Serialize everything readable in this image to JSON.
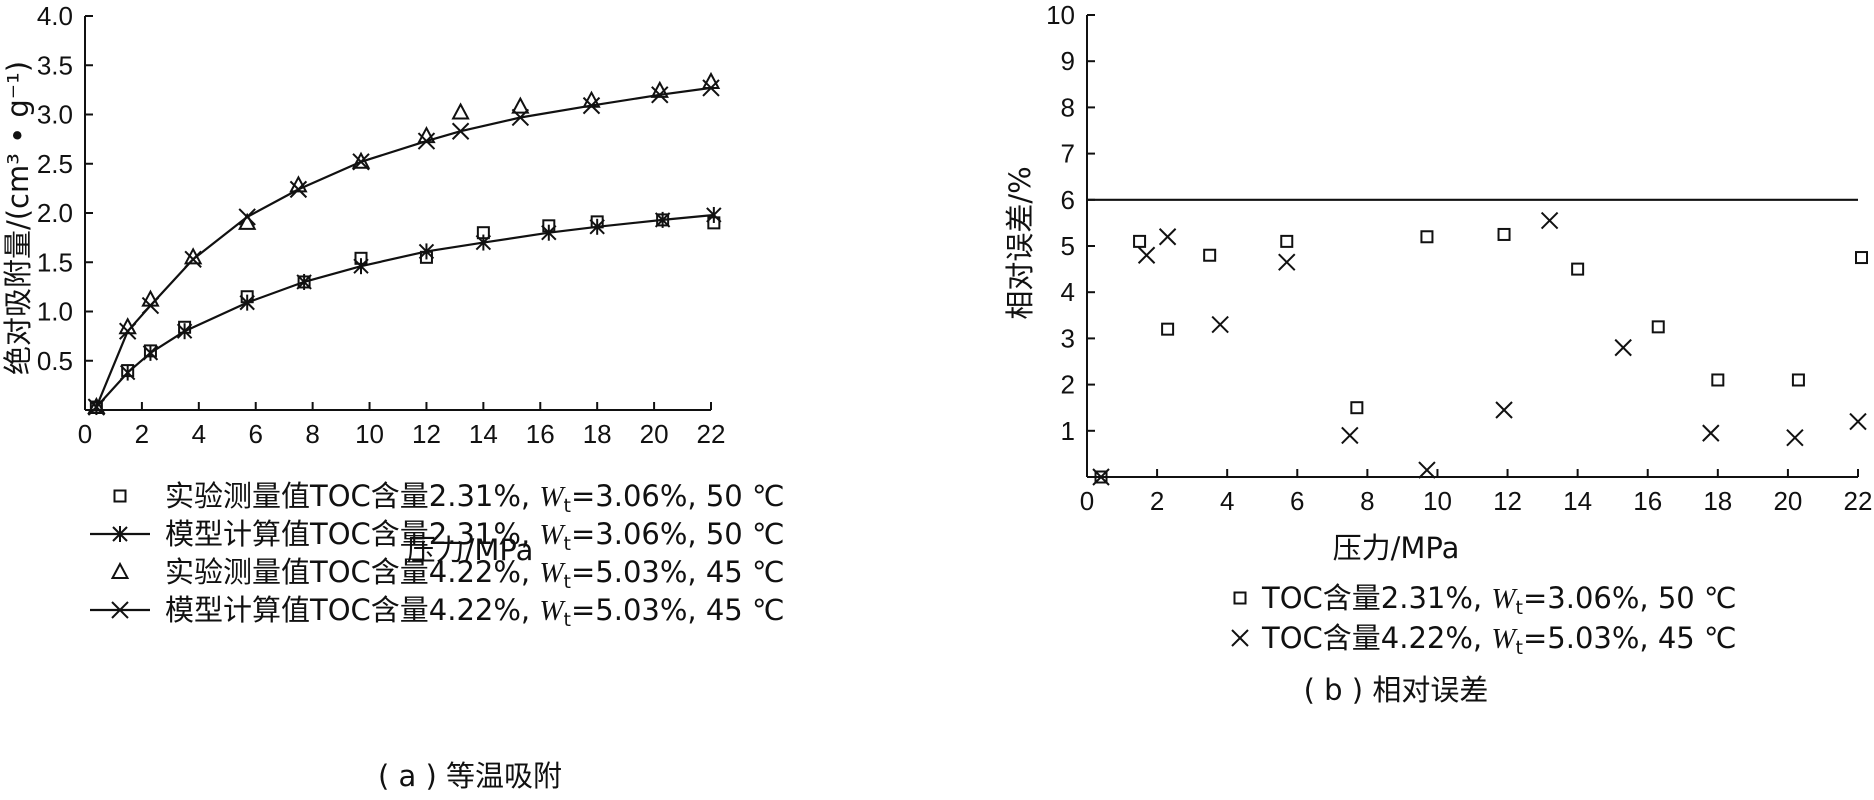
{
  "chart_data": [
    {
      "id": "a",
      "type": "scatter+line",
      "caption": "( a ) 等温吸附",
      "xlabel": "压力/MPa",
      "ylabel": "绝对吸附量/(cm³ • g⁻¹)",
      "xlim": [
        0,
        22
      ],
      "ylim": [
        0,
        4.0
      ],
      "xticks": [
        "0",
        "2",
        "4",
        "6",
        "8",
        "10",
        "12",
        "14",
        "16",
        "18",
        "20",
        "22"
      ],
      "yticks": [
        "0.5",
        "1.0",
        "1.5",
        "2.0",
        "2.5",
        "3.0",
        "3.5",
        "4.0"
      ],
      "series": [
        {
          "name": "实验测量值TOC含量2.31%, Wt=3.06%, 50 ℃",
          "legend_prefix": "实验测量值TOC含量2.31%, ",
          "legend_var": "W",
          "legend_sub": "t",
          "legend_suffix": "=3.06%, 50 ℃",
          "marker": "square",
          "line": false,
          "x": [
            0.4,
            1.5,
            2.3,
            3.5,
            5.7,
            7.7,
            9.7,
            12.0,
            14.0,
            16.3,
            18.0,
            20.3,
            22.1
          ],
          "y": [
            0.03,
            0.4,
            0.6,
            0.84,
            1.15,
            1.3,
            1.54,
            1.55,
            1.8,
            1.87,
            1.91,
            1.93,
            1.9
          ]
        },
        {
          "name": "模型计算值TOC含量2.31%, Wt=3.06%, 50 ℃",
          "legend_prefix": "模型计算值TOC含量2.31%, ",
          "legend_var": "W",
          "legend_sub": "t",
          "legend_suffix": "=3.06%, 50 ℃",
          "marker": "asterisk",
          "line": true,
          "x": [
            0.4,
            1.5,
            2.3,
            3.5,
            5.7,
            7.7,
            9.7,
            12.0,
            14.0,
            16.3,
            18.0,
            20.3,
            22.1
          ],
          "y": [
            0.03,
            0.38,
            0.58,
            0.8,
            1.09,
            1.3,
            1.46,
            1.61,
            1.7,
            1.8,
            1.86,
            1.93,
            1.98
          ]
        },
        {
          "name": "实验测量值TOC含量4.22%, Wt=5.03%, 45 ℃",
          "legend_prefix": "实验测量值TOC含量4.22%, ",
          "legend_var": "W",
          "legend_sub": "t",
          "legend_suffix": "=5.03%, 45 ℃",
          "marker": "triangle",
          "line": false,
          "x": [
            0.4,
            1.5,
            2.3,
            3.8,
            5.7,
            7.5,
            9.7,
            12.0,
            13.2,
            15.3,
            17.8,
            20.2,
            22.0
          ],
          "y": [
            0.03,
            0.84,
            1.12,
            1.55,
            1.9,
            2.28,
            2.52,
            2.78,
            3.02,
            3.08,
            3.14,
            3.24,
            3.33
          ]
        },
        {
          "name": "模型计算值TOC含量4.22%, Wt=5.03%, 45 ℃",
          "legend_prefix": "模型计算值TOC含量4.22%, ",
          "legend_var": "W",
          "legend_sub": "t",
          "legend_suffix": "=5.03%, 45 ℃",
          "marker": "x",
          "line": true,
          "x": [
            0.4,
            1.5,
            2.3,
            3.8,
            5.7,
            7.5,
            9.7,
            12.0,
            13.2,
            15.3,
            17.8,
            20.2,
            22.0
          ],
          "y": [
            0.03,
            0.8,
            1.06,
            1.53,
            1.96,
            2.24,
            2.52,
            2.73,
            2.83,
            2.97,
            3.09,
            3.2,
            3.27
          ]
        }
      ]
    },
    {
      "id": "b",
      "type": "scatter",
      "caption": "( b ) 相对误差",
      "xlabel": "压力/MPa",
      "ylabel": "相对误差/%",
      "xlim": [
        0,
        22
      ],
      "ylim": [
        0,
        10
      ],
      "xticks": [
        "0",
        "2",
        "4",
        "6",
        "8",
        "10",
        "12",
        "14",
        "16",
        "18",
        "20",
        "22"
      ],
      "yticks": [
        "1",
        "2",
        "3",
        "4",
        "5",
        "6",
        "7",
        "8",
        "9",
        "10"
      ],
      "reference_line_y": 6,
      "series": [
        {
          "name": "TOC含量2.31%, Wt=3.06%, 50 ℃",
          "legend_prefix": "TOC含量2.31%, ",
          "legend_var": "W",
          "legend_sub": "t",
          "legend_suffix": "=3.06%, 50 ℃",
          "marker": "square",
          "x": [
            0.4,
            1.5,
            2.3,
            3.5,
            5.7,
            7.7,
            9.7,
            11.9,
            14.0,
            16.3,
            18.0,
            20.3,
            22.1
          ],
          "y": [
            0.0,
            5.1,
            3.2,
            4.8,
            5.1,
            1.5,
            5.2,
            5.25,
            4.5,
            3.25,
            2.1,
            2.1,
            4.75
          ]
        },
        {
          "name": "TOC含量4.22%, Wt=5.03%, 45 ℃",
          "legend_prefix": "TOC含量4.22%, ",
          "legend_var": "W",
          "legend_sub": "t",
          "legend_suffix": "=5.03%, 45 ℃",
          "marker": "x",
          "x": [
            0.4,
            1.7,
            2.3,
            3.8,
            5.7,
            7.5,
            9.7,
            11.9,
            13.2,
            15.3,
            17.8,
            20.2,
            22.0
          ],
          "y": [
            0.0,
            4.8,
            5.2,
            3.3,
            4.65,
            0.9,
            0.15,
            1.45,
            5.55,
            2.8,
            0.95,
            0.85,
            1.2
          ]
        }
      ]
    }
  ]
}
